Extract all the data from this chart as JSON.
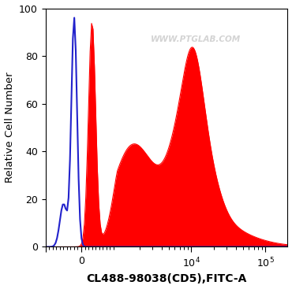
{
  "xlabel": "CL488-98038(CD5),FITC-A",
  "ylabel": "Relative Cell Number",
  "ylim": [
    0,
    100
  ],
  "yticks": [
    0,
    20,
    40,
    60,
    80,
    100
  ],
  "background_color": "#ffffff",
  "watermark": "WWW.PTGLAB.COM",
  "blue_line_color": "#2222cc",
  "red_fill_color": "#ff0000",
  "xlabel_fontsize": 10,
  "ylabel_fontsize": 9.5,
  "tick_fontsize": 9,
  "linthresh": 1000,
  "xmin": -1000,
  "xmax": 200000
}
